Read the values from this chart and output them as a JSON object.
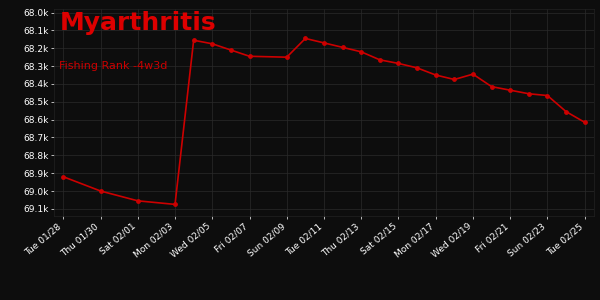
{
  "title": "Myarthritis",
  "subtitle": "Fishing Rank -4w3d",
  "bg_color": "#0d0d0d",
  "plot_bg_color": "#0d0d0d",
  "line_color": "#cc0000",
  "dot_color": "#cc0000",
  "text_color": "#ffffff",
  "title_color": "#dd0000",
  "subtitle_color": "#cc0000",
  "grid_color": "#2a2a2a",
  "x_labels": [
    "Tue 01/28",
    "Thu 01/30",
    "Sat 02/01",
    "Mon 02/03",
    "Wed 02/05",
    "Fri 02/07",
    "Sun 02/09",
    "Tue 02/11",
    "Thu 02/13",
    "Sat 02/15",
    "Mon 02/17",
    "Wed 02/19",
    "Fri 02/21",
    "Sun 02/23",
    "Tue 02/25"
  ],
  "x_tick_pos": [
    0,
    2,
    4,
    6,
    8,
    10,
    12,
    14,
    16,
    18,
    20,
    22,
    24,
    26,
    28
  ],
  "data_x": [
    0,
    2,
    4,
    6,
    7,
    8,
    9,
    10,
    12,
    13,
    14,
    15,
    16,
    17,
    18,
    19,
    20,
    21,
    22,
    23,
    24,
    25,
    26,
    27,
    28
  ],
  "data_y": [
    68920,
    69000,
    69055,
    69075,
    68155,
    68175,
    68210,
    68245,
    68250,
    68145,
    68170,
    68195,
    68220,
    68265,
    68285,
    68310,
    68350,
    68375,
    68345,
    68415,
    68435,
    68455,
    68465,
    68555,
    68615
  ],
  "ylim_min": 67980,
  "ylim_max": 69140,
  "yticks": [
    68000,
    68100,
    68200,
    68300,
    68400,
    68500,
    68600,
    68700,
    68800,
    68900,
    69000,
    69100
  ],
  "ytick_labels": [
    "68.0k",
    "68.1k",
    "68.2k",
    "68.3k",
    "68.4k",
    "68.5k",
    "68.6k",
    "68.7k",
    "68.8k",
    "68.9k",
    "69.0k",
    "69.1k"
  ]
}
